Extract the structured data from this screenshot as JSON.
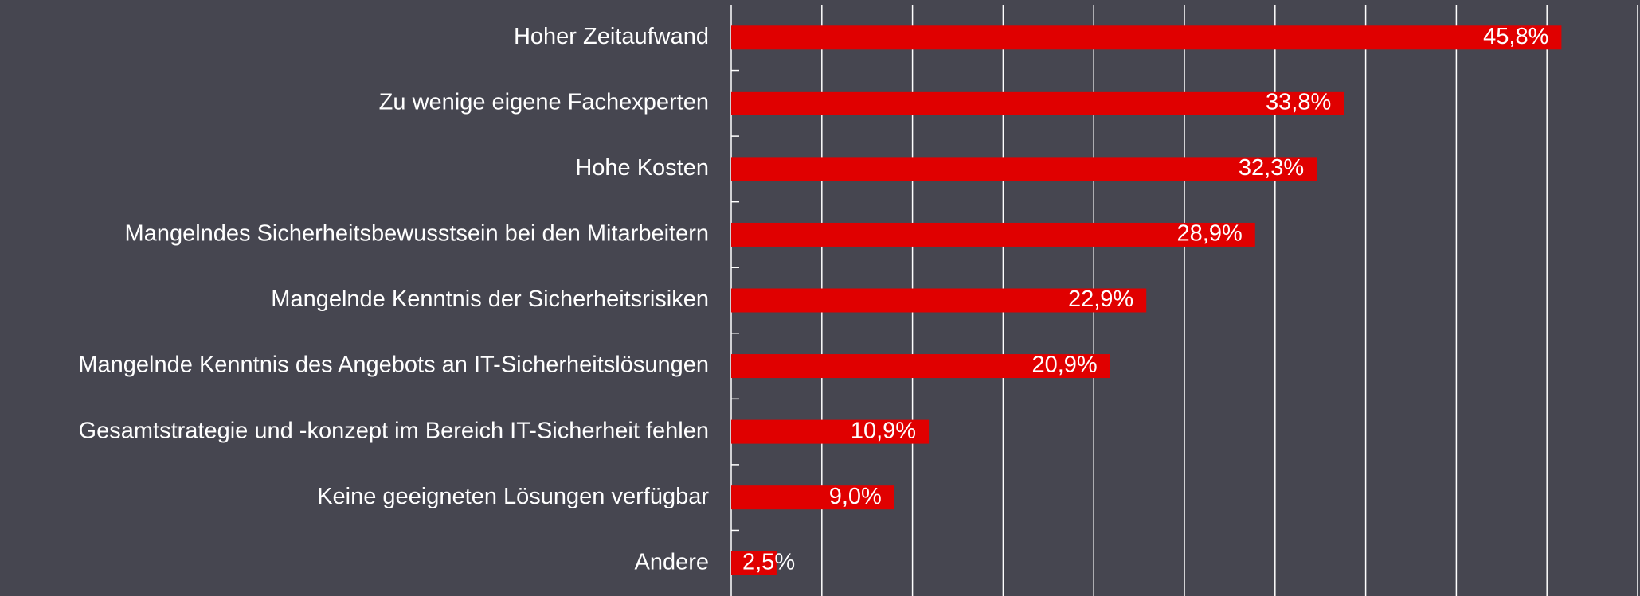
{
  "chart_data": {
    "type": "barh",
    "categories": [
      "Hoher Zeitaufwand",
      "Zu wenige eigene Fachexperten",
      "Hohe Kosten",
      "Mangelndes Sicherheitsbewusstsein bei den Mitarbeitern",
      "Mangelnde Kenntnis der Sicherheitsrisiken",
      "Mangelnde Kenntnis des Angebots an IT-Sicherheitslösungen",
      "Gesamtstrategie und -konzept im Bereich IT-Sicherheit fehlen",
      "Keine geeigneten Lösungen verfügbar",
      "Andere"
    ],
    "values": [
      45.8,
      33.8,
      32.3,
      28.9,
      22.9,
      20.9,
      10.9,
      9.0,
      2.5
    ],
    "value_labels": [
      "45,8%",
      "33,8%",
      "32,3%",
      "28,9%",
      "22,9%",
      "20,9%",
      "10,9%",
      "9,0%",
      "2,5%"
    ],
    "color": "#e00000",
    "xlim": [
      0,
      50
    ],
    "xticks": [
      0,
      5,
      10,
      15,
      20,
      25,
      30,
      35,
      40,
      45,
      50
    ],
    "grid": true
  }
}
